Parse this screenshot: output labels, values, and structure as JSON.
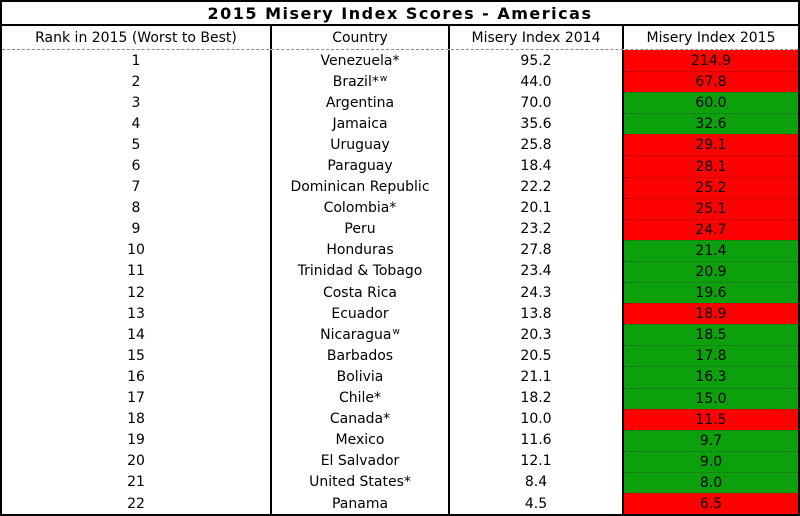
{
  "chart_data": {
    "type": "table",
    "title": "2015 Misery Index Scores - Americas",
    "columns": [
      "Rank in 2015 (Worst to Best)",
      "Country",
      "Misery Index 2014",
      "Misery Index 2015"
    ],
    "rows": [
      {
        "rank": "1",
        "country": "Venezuela*",
        "sup": "",
        "mi2014": "95.2",
        "mi2015": "214.9",
        "change": "worse"
      },
      {
        "rank": "2",
        "country": "Brazil*",
        "sup": "w",
        "mi2014": "44.0",
        "mi2015": "67.8",
        "change": "worse"
      },
      {
        "rank": "3",
        "country": "Argentina",
        "sup": "",
        "mi2014": "70.0",
        "mi2015": "60.0",
        "change": "better"
      },
      {
        "rank": "4",
        "country": "Jamaica",
        "sup": "",
        "mi2014": "35.6",
        "mi2015": "32.6",
        "change": "better"
      },
      {
        "rank": "5",
        "country": "Uruguay",
        "sup": "",
        "mi2014": "25.8",
        "mi2015": "29.1",
        "change": "worse"
      },
      {
        "rank": "6",
        "country": "Paraguay",
        "sup": "",
        "mi2014": "18.4",
        "mi2015": "28.1",
        "change": "worse"
      },
      {
        "rank": "7",
        "country": "Dominican Republic",
        "sup": "",
        "mi2014": "22.2",
        "mi2015": "25.2",
        "change": "worse"
      },
      {
        "rank": "8",
        "country": "Colombia*",
        "sup": "",
        "mi2014": "20.1",
        "mi2015": "25.1",
        "change": "worse"
      },
      {
        "rank": "9",
        "country": "Peru",
        "sup": "",
        "mi2014": "23.2",
        "mi2015": "24.7",
        "change": "worse"
      },
      {
        "rank": "10",
        "country": "Honduras",
        "sup": "",
        "mi2014": "27.8",
        "mi2015": "21.4",
        "change": "better"
      },
      {
        "rank": "11",
        "country": "Trinidad & Tobago",
        "sup": "",
        "mi2014": "23.4",
        "mi2015": "20.9",
        "change": "better"
      },
      {
        "rank": "12",
        "country": "Costa Rica",
        "sup": "",
        "mi2014": "24.3",
        "mi2015": "19.6",
        "change": "better"
      },
      {
        "rank": "13",
        "country": "Ecuador",
        "sup": "",
        "mi2014": "13.8",
        "mi2015": "18.9",
        "change": "worse"
      },
      {
        "rank": "14",
        "country": "Nicaragua",
        "sup": "w",
        "mi2014": "20.3",
        "mi2015": "18.5",
        "change": "better"
      },
      {
        "rank": "15",
        "country": "Barbados",
        "sup": "",
        "mi2014": "20.5",
        "mi2015": "17.8",
        "change": "better"
      },
      {
        "rank": "16",
        "country": "Bolivia",
        "sup": "",
        "mi2014": "21.1",
        "mi2015": "16.3",
        "change": "better"
      },
      {
        "rank": "17",
        "country": "Chile*",
        "sup": "",
        "mi2014": "18.2",
        "mi2015": "15.0",
        "change": "better"
      },
      {
        "rank": "18",
        "country": "Canada*",
        "sup": "",
        "mi2014": "10.0",
        "mi2015": "11.5",
        "change": "worse"
      },
      {
        "rank": "19",
        "country": "Mexico",
        "sup": "",
        "mi2014": "11.6",
        "mi2015": "9.7",
        "change": "better"
      },
      {
        "rank": "20",
        "country": "El Salvador",
        "sup": "",
        "mi2014": "12.1",
        "mi2015": "9.0",
        "change": "better"
      },
      {
        "rank": "21",
        "country": "United States*",
        "sup": "",
        "mi2014": "8.4",
        "mi2015": "8.0",
        "change": "better"
      },
      {
        "rank": "22",
        "country": "Panama",
        "sup": "",
        "mi2014": "4.5",
        "mi2015": "6.5",
        "change": "worse"
      }
    ]
  },
  "colors": {
    "worse": "#ff0000",
    "better": "#0ca00c",
    "grid": "#000000"
  }
}
